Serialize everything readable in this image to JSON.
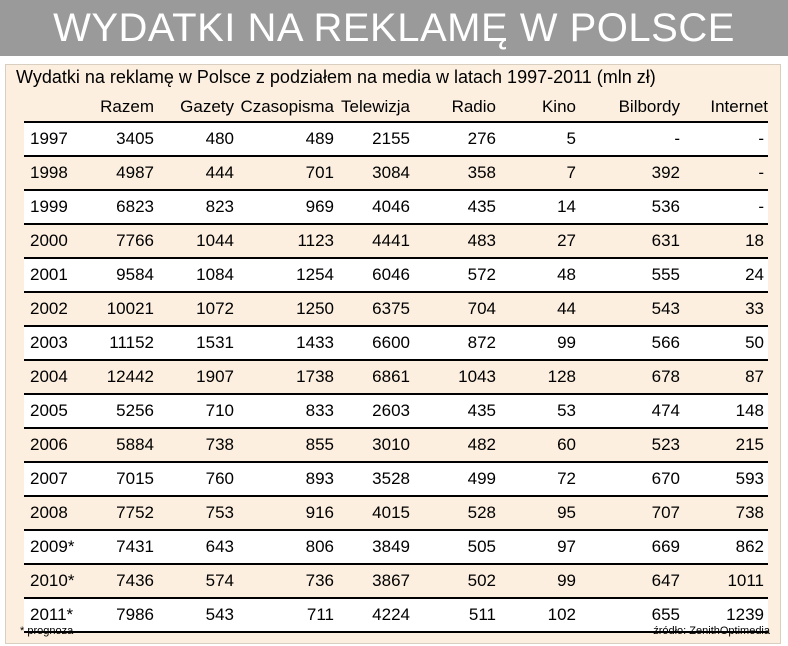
{
  "banner": {
    "title": "WYDATKI NA REKLAMĘ W POLSCE"
  },
  "subtitle": "Wydatki na reklamę w Polsce z podziałem na media w latach 1997-2011 (mln zł)",
  "columns": [
    "",
    "Razem",
    "Gazety",
    "Czasopisma",
    "Telewizja",
    "Radio",
    "Kino",
    "Bilbordy",
    "Internet"
  ],
  "rows": [
    [
      "1997",
      "3405",
      "480",
      "489",
      "2155",
      "276",
      "5",
      "-",
      "-"
    ],
    [
      "1998",
      "4987",
      "444",
      "701",
      "3084",
      "358",
      "7",
      "392",
      "-"
    ],
    [
      "1999",
      "6823",
      "823",
      "969",
      "4046",
      "435",
      "14",
      "536",
      "-"
    ],
    [
      "2000",
      "7766",
      "1044",
      "1123",
      "4441",
      "483",
      "27",
      "631",
      "18"
    ],
    [
      "2001",
      "9584",
      "1084",
      "1254",
      "6046",
      "572",
      "48",
      "555",
      "24"
    ],
    [
      "2002",
      "10021",
      "1072",
      "1250",
      "6375",
      "704",
      "44",
      "543",
      "33"
    ],
    [
      "2003",
      "11152",
      "1531",
      "1433",
      "6600",
      "872",
      "99",
      "566",
      "50"
    ],
    [
      "2004",
      "12442",
      "1907",
      "1738",
      "6861",
      "1043",
      "128",
      "678",
      "87"
    ],
    [
      "2005",
      "5256",
      "710",
      "833",
      "2603",
      "435",
      "53",
      "474",
      "148"
    ],
    [
      "2006",
      "5884",
      "738",
      "855",
      "3010",
      "482",
      "60",
      "523",
      "215"
    ],
    [
      "2007",
      "7015",
      "760",
      "893",
      "3528",
      "499",
      "72",
      "670",
      "593"
    ],
    [
      "2008",
      "7752",
      "753",
      "916",
      "4015",
      "528",
      "95",
      "707",
      "738"
    ],
    [
      "2009*",
      "7431",
      "643",
      "806",
      "3849",
      "505",
      "97",
      "669",
      "862"
    ],
    [
      "2010*",
      "7436",
      "574",
      "736",
      "3867",
      "502",
      "99",
      "647",
      "1011"
    ],
    [
      "2011*",
      "7986",
      "543",
      "711",
      "4224",
      "511",
      "102",
      "655",
      "1239"
    ]
  ],
  "footnote": "* prognoza",
  "source": "źródło: ZenithOptimedia",
  "colors": {
    "banner": "#9a9a9a",
    "panel": "#fcefdf",
    "row_alt": "#ffffff"
  }
}
